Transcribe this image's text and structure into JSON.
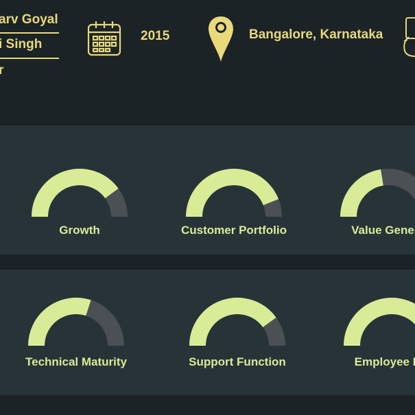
{
  "founders": [
    "arv Goyal",
    "i Singh",
    "r"
  ],
  "founded_year": "2015",
  "location": "Bangalore, Karnataka",
  "icons": {
    "calendar": "calendar-icon",
    "location": "location-pin-icon",
    "phone": "phone-icon"
  },
  "colors": {
    "accent": "#e8d97a",
    "gauge_fill": "#d8ec97",
    "gauge_track": "#4a5054",
    "band": "#283338",
    "background": "#1b2326"
  },
  "rows": [
    {
      "metrics": [
        {
          "label": "Growth",
          "value": 0.8
        },
        {
          "label": "Customer Portfolio",
          "value": 0.88
        },
        {
          "label": "Value Genera",
          "value": 0.45
        }
      ]
    },
    {
      "metrics": [
        {
          "label": "Technical Maturity",
          "value": 0.6
        },
        {
          "label": "Support Function",
          "value": 0.8
        },
        {
          "label": "Employee Ma",
          "value": 0.9
        }
      ]
    }
  ]
}
